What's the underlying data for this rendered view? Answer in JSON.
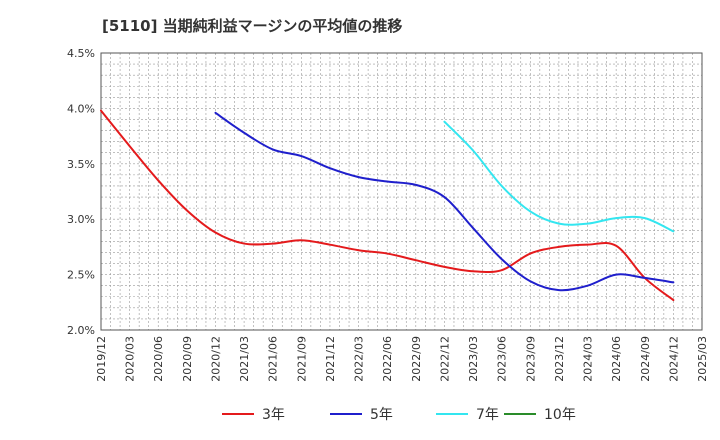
{
  "chart_data": {
    "type": "line",
    "title": "[5110]  当期純利益マージンの平均値の推移",
    "xlabel": "",
    "ylabel": "",
    "x_ticks": [
      "2019/12",
      "2020/03",
      "2020/06",
      "2020/09",
      "2020/12",
      "2021/03",
      "2021/06",
      "2021/09",
      "2021/12",
      "2022/03",
      "2022/06",
      "2022/09",
      "2022/12",
      "2023/03",
      "2023/06",
      "2023/09",
      "2023/12",
      "2024/03",
      "2024/06",
      "2024/09",
      "2024/12",
      "2025/03"
    ],
    "y_ticks": [
      "2.0%",
      "2.5%",
      "3.0%",
      "3.5%",
      "4.0%",
      "4.5%"
    ],
    "ylim": [
      2.0,
      4.5
    ],
    "grid": true,
    "legend_position": "bottom",
    "colors": {
      "3年": "#e41a1c",
      "5年": "#1f1fcc",
      "7年": "#33e6f0",
      "10年": "#2a8c2a"
    },
    "series": [
      {
        "name": "3年",
        "x": [
          "2019/12",
          "2020/03",
          "2020/06",
          "2020/09",
          "2020/12",
          "2021/03",
          "2021/06",
          "2021/09",
          "2021/12",
          "2022/03",
          "2022/06",
          "2022/09",
          "2022/12",
          "2023/03",
          "2023/06",
          "2023/09",
          "2023/12",
          "2024/03",
          "2024/06",
          "2024/09",
          "2024/12"
        ],
        "values": [
          3.98,
          3.66,
          3.35,
          3.08,
          2.88,
          2.78,
          2.78,
          2.81,
          2.77,
          2.72,
          2.69,
          2.63,
          2.57,
          2.53,
          2.54,
          2.69,
          2.75,
          2.77,
          2.76,
          2.47,
          2.27
        ]
      },
      {
        "name": "5年",
        "x": [
          "2020/12",
          "2021/03",
          "2021/06",
          "2021/09",
          "2021/12",
          "2022/03",
          "2022/06",
          "2022/09",
          "2022/12",
          "2023/03",
          "2023/06",
          "2023/09",
          "2023/12",
          "2024/03",
          "2024/06",
          "2024/09",
          "2024/12"
        ],
        "values": [
          3.96,
          3.78,
          3.63,
          3.57,
          3.46,
          3.38,
          3.34,
          3.31,
          3.2,
          2.92,
          2.64,
          2.44,
          2.36,
          2.4,
          2.5,
          2.47,
          2.43
        ]
      },
      {
        "name": "7年",
        "x": [
          "2022/12",
          "2023/03",
          "2023/06",
          "2023/09",
          "2023/12",
          "2024/03",
          "2024/06",
          "2024/09",
          "2024/12"
        ],
        "values": [
          3.88,
          3.62,
          3.3,
          3.07,
          2.96,
          2.96,
          3.01,
          3.01,
          2.89
        ]
      },
      {
        "name": "10年",
        "x": [],
        "values": []
      }
    ]
  }
}
